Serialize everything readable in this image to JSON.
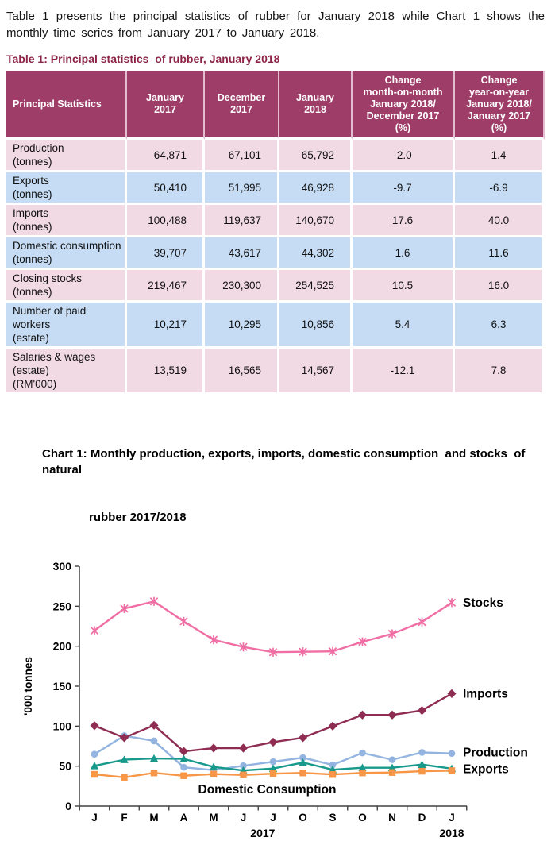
{
  "intro": {
    "text": "Table 1 presents the principal statistics of rubber for January 2018 while Chart 1 shows the monthly time series from January 2017 to January 2018."
  },
  "table": {
    "title": "Table 1: Principal statistics  of rubber, January 2018",
    "header": [
      {
        "lines": [
          "Principal Statistics"
        ],
        "align": "left"
      },
      {
        "lines": [
          "January",
          "2017"
        ]
      },
      {
        "lines": [
          "December",
          "2017"
        ]
      },
      {
        "lines": [
          "January",
          "2018"
        ]
      },
      {
        "lines": [
          "Change",
          "month-on-month",
          "January 2018/",
          "December 2017",
          "(%)"
        ]
      },
      {
        "lines": [
          "Change",
          "year-on-year",
          "January 2018/",
          "January 2017",
          "(%)"
        ]
      }
    ],
    "rows": [
      {
        "label": "Production",
        "sub": "(tonnes)",
        "jan2017": "64,871",
        "dec2017": "67,101",
        "jan2018": "65,792",
        "mom": "-2.0",
        "yoy": "1.4"
      },
      {
        "label": "Exports",
        "sub": "(tonnes)",
        "jan2017": "50,410",
        "dec2017": "51,995",
        "jan2018": "46,928",
        "mom": "-9.7",
        "yoy": "-6.9"
      },
      {
        "label": "Imports",
        "sub": "(tonnes)",
        "jan2017": "100,488",
        "dec2017": "119,637",
        "jan2018": "140,670",
        "mom": "17.6",
        "yoy": "40.0"
      },
      {
        "label": "Domestic consumption",
        "sub": "(tonnes)",
        "jan2017": "39,707",
        "dec2017": "43,617",
        "jan2018": "44,302",
        "mom": "1.6",
        "yoy": "11.6"
      },
      {
        "label": "Closing stocks",
        "sub": "(tonnes)",
        "jan2017": "219,467",
        "dec2017": "230,300",
        "jan2018": "254,525",
        "mom": "10.5",
        "yoy": "16.0"
      },
      {
        "label": "Number of paid workers",
        "sub": "(estate)",
        "jan2017": "10,217",
        "dec2017": "10,295",
        "jan2018": "10,856",
        "mom": "5.4",
        "yoy": "6.3"
      },
      {
        "label": "Salaries & wages (estate)",
        "sub": "(RM'000)",
        "jan2017": "13,519",
        "dec2017": "16,565",
        "jan2018": "14,567",
        "mom": "-12.1",
        "yoy": "7.8"
      }
    ],
    "colors": {
      "header_bg": "#9E3D68",
      "header_text": "#FFFFFF",
      "header_divider": "#E3BCCF",
      "row_pink": "#F2DAE4",
      "row_blue": "#C5DCF4",
      "title_color": "#8C2446"
    }
  },
  "chart": {
    "title_line1": "Chart 1: Monthly production, exports, imports, domestic consumption  and stocks  of natural",
    "title_line2": "rubber 2017/2018"
  },
  "chart_data": {
    "type": "line",
    "title": "Chart 1: Monthly production, exports, imports, domestic consumption and stocks of natural rubber 2017/2018",
    "xlabel": "",
    "ylabel": "'000 tonnes",
    "ylim": [
      0,
      300
    ],
    "yticks": [
      0,
      50,
      100,
      150,
      200,
      250,
      300
    ],
    "grid": false,
    "legend_position": "labels at line ends",
    "categories": [
      "J",
      "F",
      "M",
      "A",
      "M",
      "J",
      "J",
      "O",
      "S",
      "O",
      "N",
      "D",
      "J"
    ],
    "x_year_labels": [
      {
        "label": "2017",
        "x_index": 5.65
      },
      {
        "label": "2018",
        "x_index": 12
      }
    ],
    "axis_color": "#404040",
    "series": [
      {
        "name": "Production",
        "color": "#93B4E0",
        "marker": "circle",
        "values": [
          64.9,
          88,
          81.5,
          48.5,
          45,
          50.5,
          55.5,
          60.5,
          51.5,
          66.5,
          58,
          67.1,
          65.8
        ],
        "label": {
          "text": "Production",
          "x_index": 12,
          "dx": 14,
          "value": 67.5,
          "anchor": "start"
        }
      },
      {
        "name": "Exports",
        "color": "#17998B",
        "marker": "triangle",
        "values": [
          50.4,
          58,
          59.5,
          59,
          49,
          44.5,
          47,
          54.5,
          45.5,
          48,
          48,
          52,
          46.9
        ],
        "label": {
          "text": "Exports",
          "x_index": 12,
          "dx": 14,
          "value": 46.5,
          "anchor": "start"
        }
      },
      {
        "name": "Domestic Consumption",
        "color": "#F79646",
        "marker": "square",
        "values": [
          39.7,
          36,
          41.5,
          38,
          40,
          39,
          40.5,
          41.5,
          39.5,
          41.5,
          42,
          43.6,
          44.3
        ],
        "label": {
          "text": "Domestic Consumption",
          "x_index": 5.8,
          "dx": 0,
          "value": 21.5,
          "anchor": "middle"
        }
      },
      {
        "name": "Imports",
        "color": "#8E2C52",
        "marker": "diamond",
        "values": [
          100.5,
          85.5,
          101,
          68.5,
          72.5,
          72.5,
          80,
          85.5,
          100,
          114,
          114,
          119.6,
          140.7
        ],
        "label": {
          "text": "Imports",
          "x_index": 12,
          "dx": 14,
          "value": 141,
          "anchor": "start"
        }
      },
      {
        "name": "Stocks",
        "color": "#F06EA4",
        "marker": "star",
        "values": [
          219.5,
          247,
          256,
          231,
          208,
          199,
          192.5,
          193,
          193.5,
          205.5,
          215.5,
          230.3,
          254.5
        ],
        "label": {
          "text": "Stocks",
          "x_index": 12,
          "dx": 14,
          "value": 255,
          "anchor": "start"
        }
      }
    ]
  }
}
